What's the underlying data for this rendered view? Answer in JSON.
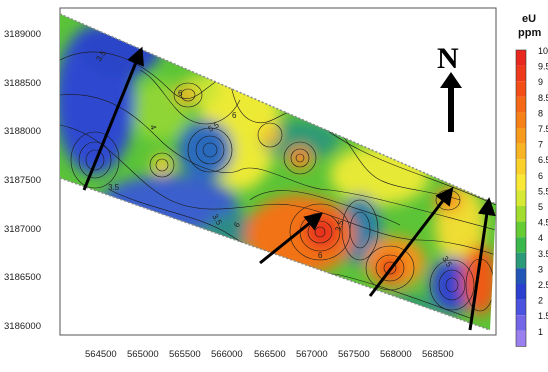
{
  "map": {
    "y_ticks": [
      "3189000",
      "3188500",
      "3188000",
      "3187500",
      "3187000",
      "3186500",
      "3186000"
    ],
    "x_ticks": [
      "564500",
      "565000",
      "565500",
      "566000",
      "566500",
      "567000",
      "567500",
      "568000",
      "568500"
    ],
    "contour_labels": [
      "3.5",
      "6",
      "5.5",
      "6",
      "3.5",
      "3.5",
      "6",
      "6",
      "3.5",
      "6",
      "3.5",
      "4"
    ]
  },
  "north_arrow": {
    "letter": "N"
  },
  "legend": {
    "title_line1": "eU",
    "title_line2": "ppm",
    "entries": [
      {
        "label": "10",
        "color": "#e8271e"
      },
      {
        "label": "9.5",
        "color": "#ee3a1a"
      },
      {
        "label": "9",
        "color": "#f24e16"
      },
      {
        "label": "8.5",
        "color": "#f56815"
      },
      {
        "label": "8",
        "color": "#f78116"
      },
      {
        "label": "7.5",
        "color": "#f89a1b"
      },
      {
        "label": "7",
        "color": "#f9b423"
      },
      {
        "label": "6.5",
        "color": "#fad02b"
      },
      {
        "label": "6",
        "color": "#f9e836"
      },
      {
        "label": "5.5",
        "color": "#d6ea35"
      },
      {
        "label": "5",
        "color": "#a2dc2f"
      },
      {
        "label": "4.5",
        "color": "#66cc33"
      },
      {
        "label": "4",
        "color": "#3bb84b"
      },
      {
        "label": "3.5",
        "color": "#2a9a78"
      },
      {
        "label": "3",
        "color": "#2156b8"
      },
      {
        "label": "2.5",
        "color": "#2b3fd0"
      },
      {
        "label": "2",
        "color": "#4b52e0"
      },
      {
        "label": "1.5",
        "color": "#7466e8"
      },
      {
        "label": "1",
        "color": "#9a80ef"
      }
    ]
  }
}
